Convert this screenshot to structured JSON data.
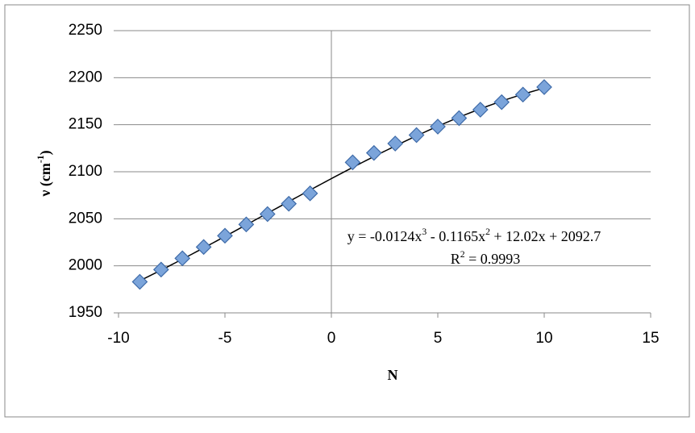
{
  "chart_data": {
    "type": "scatter",
    "x_label": "N",
    "y_label_parts": [
      "ν (cm",
      "-1",
      ")"
    ],
    "x": [
      -9,
      -8,
      -7,
      -6,
      -5,
      -4,
      -3,
      -2,
      -1,
      1,
      2,
      3,
      4,
      5,
      6,
      7,
      8,
      9,
      10
    ],
    "series": [
      {
        "color": "#7ba4da",
        "values": [
          1983,
          1996,
          2008,
          2020,
          2032,
          2044,
          2055,
          2066,
          2077,
          2110,
          2120,
          2130,
          2139,
          2148,
          2157,
          2166,
          2174,
          2182,
          2190
        ]
      }
    ],
    "xlim": [
      -10,
      15
    ],
    "xticks": [
      -10,
      -5,
      0,
      5,
      10,
      15
    ],
    "ylim": [
      1950,
      2250
    ],
    "yticks": [
      1950,
      2000,
      2050,
      2100,
      2150,
      2200,
      2250
    ],
    "grid": true,
    "trendline": {
      "coefficients": [
        -0.0124,
        -0.1165,
        12.02,
        2092.7
      ],
      "color": "#000000"
    },
    "equation_parts": [
      "y = -0.0124x",
      "3",
      " - 0.1165x",
      "2",
      " + 12.02x + 2092.7"
    ],
    "r2_parts": [
      "R",
      "2",
      " = 0.9993"
    ]
  }
}
